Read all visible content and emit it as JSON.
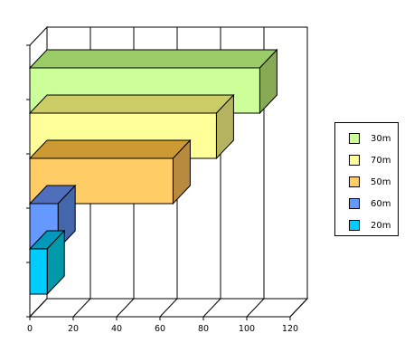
{
  "chart_data": {
    "type": "bar",
    "orientation": "horizontal",
    "three_d": true,
    "title": "",
    "xlabel": "",
    "ylabel": "",
    "xlim": [
      0,
      120
    ],
    "x_ticks": [
      0,
      20,
      40,
      60,
      80,
      100,
      120
    ],
    "grid": true,
    "legend_position": "right",
    "categories": [
      "30m",
      "70m",
      "50m",
      "60m",
      "20m"
    ],
    "values": [
      106,
      86,
      66,
      13,
      8
    ],
    "colors": {
      "30m": {
        "face": "#ccff99",
        "top": "#99cc66",
        "side": "#88aa55"
      },
      "70m": {
        "face": "#ffff99",
        "top": "#cccc66",
        "side": "#b4b460"
      },
      "50m": {
        "face": "#ffcc66",
        "top": "#cc9933",
        "side": "#b88a40"
      },
      "60m": {
        "face": "#6699ff",
        "top": "#4f6fbd",
        "side": "#4466aa"
      },
      "20m": {
        "face": "#00ccff",
        "top": "#0099bb",
        "side": "#0099aa"
      }
    }
  },
  "legend": {
    "items": [
      {
        "label": "30m",
        "color": "#ccff99"
      },
      {
        "label": "70m",
        "color": "#ffff99"
      },
      {
        "label": "50m",
        "color": "#ffcc66"
      },
      {
        "label": "60m",
        "color": "#6699ff"
      },
      {
        "label": "20m",
        "color": "#00ccff"
      }
    ]
  }
}
